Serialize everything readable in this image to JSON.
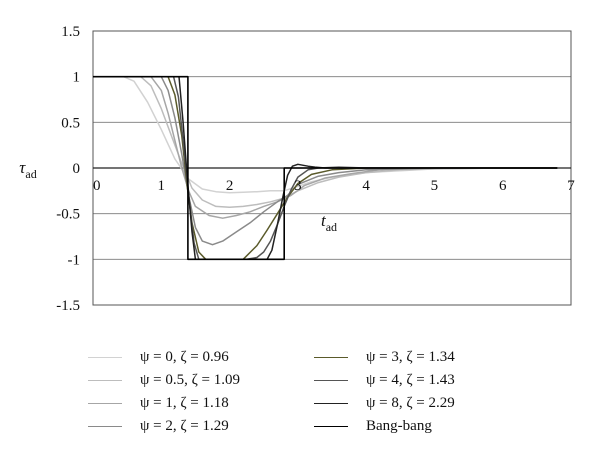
{
  "chart_data": {
    "type": "line",
    "xlabel": "t",
    "xlabel_sub": "ad",
    "ylabel": "τ",
    "ylabel_sub": "ad",
    "xlim": [
      0,
      7
    ],
    "ylim": [
      -1.5,
      1.5
    ],
    "x_ticks": [
      "0",
      "1",
      "2",
      "3",
      "4",
      "5",
      "6",
      "7"
    ],
    "y_ticks": [
      "1.5",
      "1",
      "0.5",
      "0",
      "-0.5",
      "-1",
      "-1.5"
    ],
    "grid": "horizontal",
    "legend_position": "bottom",
    "series": [
      {
        "name": "ψ = 0, ζ = 0.96",
        "color": "#d2d2d2",
        "x": [
          0,
          0.45,
          0.6,
          0.8,
          1.0,
          1.2,
          1.4,
          1.6,
          1.8,
          2.0,
          2.2,
          2.4,
          2.6,
          2.8,
          3.0,
          3.2,
          3.5,
          4.0,
          4.5,
          5.0,
          6.0,
          6.8
        ],
        "y": [
          1,
          1,
          0.95,
          0.72,
          0.42,
          0.1,
          -0.12,
          -0.23,
          -0.26,
          -0.27,
          -0.265,
          -0.26,
          -0.25,
          -0.25,
          -0.2,
          -0.15,
          -0.1,
          -0.05,
          -0.03,
          -0.01,
          0,
          0
        ]
      },
      {
        "name": "ψ = 0.5, ζ = 1.09",
        "color": "#bdbdbd",
        "x": [
          0,
          0.7,
          0.85,
          1.0,
          1.15,
          1.3,
          1.45,
          1.6,
          1.8,
          2.0,
          2.2,
          2.4,
          2.6,
          2.8,
          3.0,
          3.3,
          3.6,
          4.0,
          4.5,
          5.0,
          6.0,
          6.8
        ],
        "y": [
          1,
          1,
          0.9,
          0.65,
          0.35,
          0.05,
          -0.22,
          -0.35,
          -0.42,
          -0.43,
          -0.42,
          -0.4,
          -0.37,
          -0.33,
          -0.25,
          -0.16,
          -0.1,
          -0.05,
          -0.02,
          -0.01,
          0,
          0
        ]
      },
      {
        "name": "ψ = 1, ζ = 1.18",
        "color": "#a6a6a6",
        "x": [
          0,
          0.85,
          1.0,
          1.1,
          1.2,
          1.3,
          1.4,
          1.5,
          1.7,
          1.9,
          2.1,
          2.3,
          2.5,
          2.7,
          2.9,
          3.1,
          3.4,
          3.8,
          4.2,
          5.0,
          6.0,
          6.8
        ],
        "y": [
          1,
          1,
          0.85,
          0.6,
          0.3,
          0.0,
          -0.25,
          -0.42,
          -0.52,
          -0.55,
          -0.52,
          -0.48,
          -0.42,
          -0.37,
          -0.3,
          -0.19,
          -0.11,
          -0.06,
          -0.02,
          0,
          0,
          0
        ]
      },
      {
        "name": "ψ = 2, ζ = 1.29",
        "color": "#8a8a8a",
        "x": [
          0,
          1.0,
          1.1,
          1.2,
          1.3,
          1.4,
          1.5,
          1.6,
          1.75,
          1.9,
          2.1,
          2.3,
          2.5,
          2.7,
          2.85,
          3.0,
          3.3,
          3.6,
          4.0,
          4.5,
          5.0,
          6.8
        ],
        "y": [
          1,
          1,
          0.85,
          0.55,
          0.15,
          -0.3,
          -0.65,
          -0.8,
          -0.84,
          -0.8,
          -0.7,
          -0.6,
          -0.48,
          -0.37,
          -0.3,
          -0.18,
          -0.09,
          -0.05,
          -0.02,
          -0.01,
          0,
          0
        ]
      },
      {
        "name": "ψ = 3, ζ = 1.34",
        "color": "#5a5a2a",
        "x": [
          0,
          1.1,
          1.2,
          1.3,
          1.38,
          1.45,
          1.55,
          1.65,
          1.8,
          2.0,
          2.2,
          2.4,
          2.55,
          2.7,
          2.85,
          3.0,
          3.2,
          3.5,
          4.0,
          4.5,
          5.0,
          6.8
        ],
        "y": [
          1,
          1,
          0.8,
          0.35,
          -0.2,
          -0.6,
          -0.92,
          -1,
          -1,
          -1,
          -1,
          -0.85,
          -0.68,
          -0.5,
          -0.32,
          -0.17,
          -0.07,
          -0.02,
          0,
          0,
          0,
          0
        ]
      },
      {
        "name": "ψ = 4, ζ = 1.43",
        "color": "#555555",
        "x": [
          0,
          1.18,
          1.25,
          1.32,
          1.4,
          1.48,
          1.55,
          2.25,
          2.4,
          2.5,
          2.6,
          2.7,
          2.8,
          2.9,
          3.0,
          3.15,
          3.3,
          3.6,
          4.0,
          4.5,
          6.8
        ],
        "y": [
          1,
          1,
          0.78,
          0.3,
          -0.3,
          -0.82,
          -1,
          -1,
          -0.98,
          -0.92,
          -0.8,
          -0.62,
          -0.42,
          -0.24,
          -0.1,
          -0.02,
          0.0,
          0.01,
          0,
          0,
          0
        ]
      },
      {
        "name": "ψ = 8, ζ = 2.29",
        "color": "#222222",
        "x": [
          0,
          1.26,
          1.32,
          1.38,
          1.45,
          1.5,
          2.55,
          2.62,
          2.7,
          2.78,
          2.85,
          2.92,
          3.0,
          3.08,
          3.15,
          3.25,
          3.4,
          3.6,
          4.0,
          6.8
        ],
        "y": [
          1,
          1,
          0.5,
          -0.1,
          -0.7,
          -1,
          -1,
          -0.9,
          -0.62,
          -0.32,
          -0.08,
          0.02,
          0.04,
          0.03,
          0.02,
          0.01,
          0,
          0,
          0,
          0
        ]
      },
      {
        "name": "Bang-bang",
        "color": "#000000",
        "x": [
          0,
          1.39,
          1.39,
          2.8,
          2.8,
          6.8
        ],
        "y": [
          1,
          1,
          -1,
          -1,
          0,
          0
        ]
      }
    ]
  }
}
